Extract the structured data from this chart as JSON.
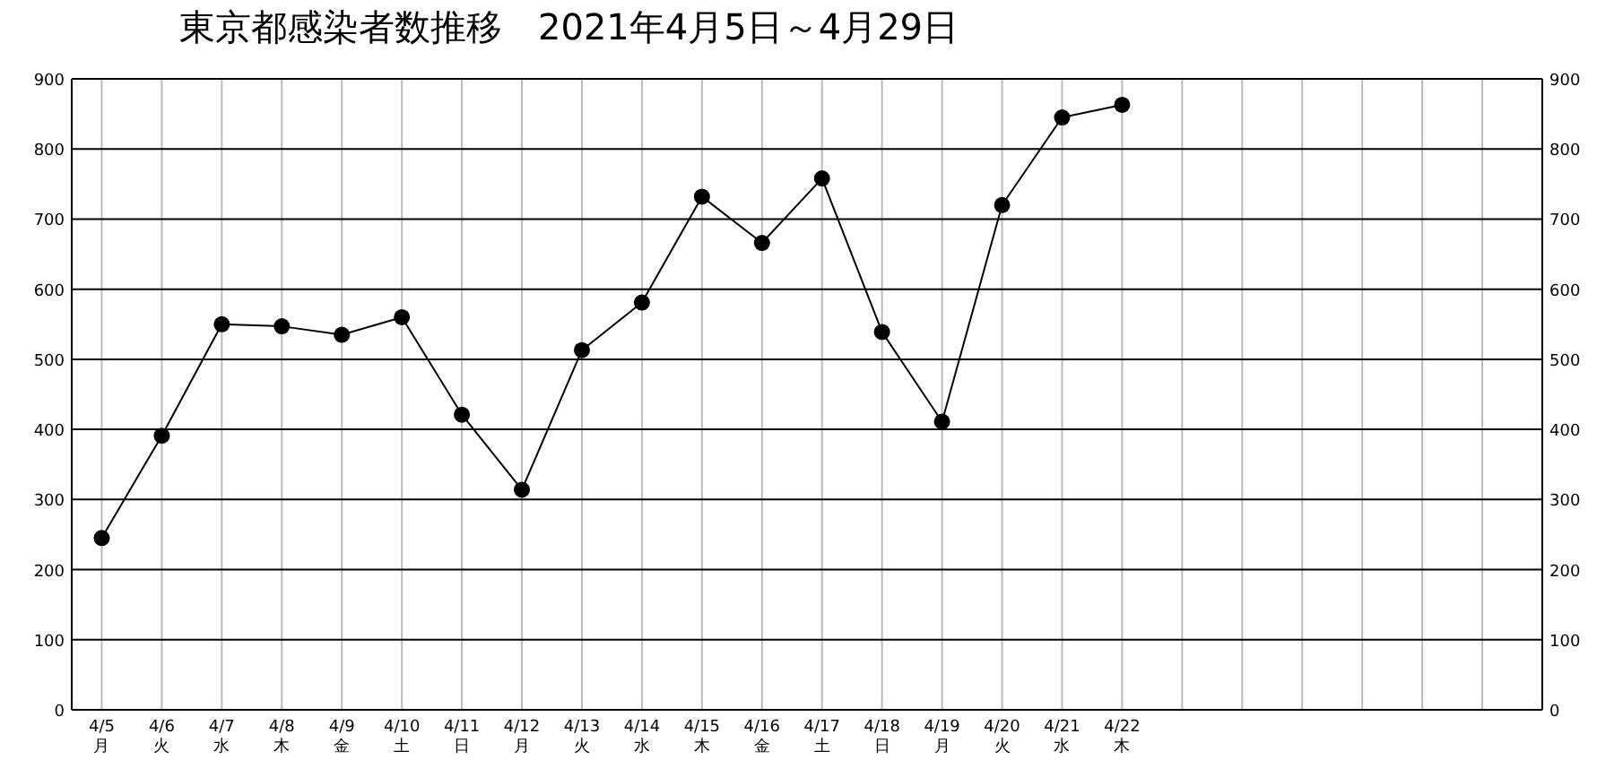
{
  "chart_data": {
    "type": "line",
    "title": "東京都感染者数推移　2021年4月5日～4月29日",
    "categories": [
      "4/5\n月",
      "4/6\n火",
      "4/7\n水",
      "4/8\n木",
      "4/9\n金",
      "4/10\n土",
      "4/11\n日",
      "4/12\n月",
      "4/13\n火",
      "4/14\n水",
      "4/15\n木",
      "4/16\n金",
      "4/17\n土",
      "4/18\n日",
      "4/19\n月",
      "4/20\n火",
      "4/21\n水",
      "4/22\n木",
      null,
      null,
      null,
      null,
      null,
      null,
      null
    ],
    "series": [
      {
        "color": "#000000",
        "values": [
          245,
          391,
          550,
          547,
          535,
          560,
          421,
          314,
          513,
          581,
          732,
          666,
          758,
          539,
          411,
          720,
          845,
          863,
          null,
          null,
          null,
          null,
          null,
          null,
          null
        ]
      }
    ],
    "ylim": [
      0,
      900
    ],
    "yticks": [
      0,
      100,
      200,
      300,
      400,
      500,
      600,
      700,
      800,
      900
    ],
    "y2lim": [
      0,
      900
    ],
    "y2ticks": [
      0,
      100,
      200,
      300,
      400,
      500,
      600,
      700,
      800,
      900
    ],
    "grid": true,
    "marker": "circle",
    "line_style": "solid"
  }
}
